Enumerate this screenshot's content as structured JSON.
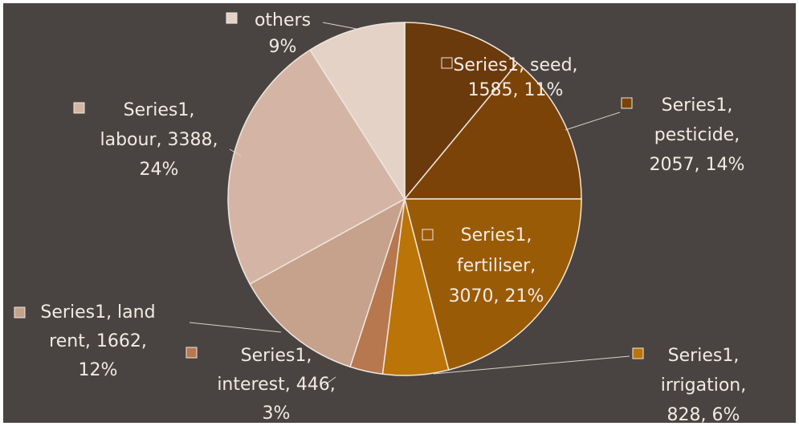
{
  "chart_data": {
    "type": "pie",
    "title": "",
    "series": [
      {
        "name": "Series1",
        "slices": [
          {
            "category": "seed",
            "value": 1585,
            "percent": "11%",
            "color": "#6a3a0d"
          },
          {
            "category": "pesticide",
            "value": 2057,
            "percent": "14%",
            "color": "#7c4308"
          },
          {
            "category": "fertiliser",
            "value": 3070,
            "percent": "21%",
            "color": "#9a5b07"
          },
          {
            "category": "irrigation",
            "value": 828,
            "percent": "6%",
            "color": "#ba7408"
          },
          {
            "category": "interest",
            "value": 446,
            "percent": "3%",
            "color": "#b7774f"
          },
          {
            "category": "land rent",
            "value": 1662,
            "percent": "12%",
            "color": "#c6a18b"
          },
          {
            "category": "labour",
            "value": 3388,
            "percent": "24%",
            "color": "#d4b5a5"
          },
          {
            "category": "others",
            "value": null,
            "percent": "9%",
            "color": "#e4d2c6"
          }
        ]
      }
    ],
    "labels": {
      "seed": [
        "Series1, seed,",
        "1585, 11%"
      ],
      "pesticide": [
        "Series1,",
        "pesticide,",
        "2057, 14%"
      ],
      "fertiliser": [
        "Series1,",
        "fertiliser,",
        "3070, 21%"
      ],
      "irrigation": [
        "Series1,",
        "irrigation,",
        "828, 6%"
      ],
      "interest": [
        "Series1,",
        "interest, 446,",
        "3%"
      ],
      "land rent": [
        "Series1, land",
        "rent, 1662,",
        "12%"
      ],
      "labour": [
        "Series1,",
        "labour, 3388,",
        "24%"
      ],
      "others": [
        "others",
        "9%"
      ]
    },
    "colors": {
      "background": "#494441",
      "label_text": "#f2ebe4",
      "leader_line": "#d9d2cb",
      "slice_border": "#eee6dc"
    },
    "legend": "none"
  }
}
